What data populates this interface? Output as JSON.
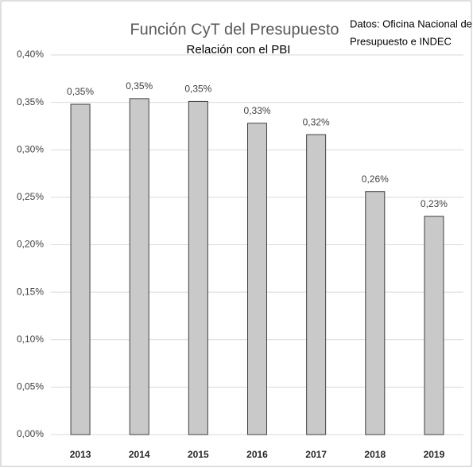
{
  "chart_data": {
    "type": "bar",
    "title": "Función CyT del Presupuesto",
    "subtitle": "Relación con el PBI",
    "annotation_lines": [
      "Datos: Oficina Nacional de",
      "Presupuesto e INDEC"
    ],
    "categories": [
      "2013",
      "2014",
      "2015",
      "2016",
      "2017",
      "2018",
      "2019"
    ],
    "values": [
      0.348,
      0.354,
      0.351,
      0.328,
      0.316,
      0.256,
      0.23
    ],
    "value_labels": [
      "0,35%",
      "0,35%",
      "0,35%",
      "0,33%",
      "0,32%",
      "0,26%",
      "0,23%"
    ],
    "color": "#c9c9c9",
    "ylim": [
      0,
      0.4
    ],
    "yticks": [
      {
        "value": 0,
        "label": "0,00%"
      },
      {
        "value": 0.05,
        "label": "0,05%"
      },
      {
        "value": 0.1,
        "label": "0,10%"
      },
      {
        "value": 0.15,
        "label": "0,15%"
      },
      {
        "value": 0.2,
        "label": "0,20%"
      },
      {
        "value": 0.25,
        "label": "0,25%"
      },
      {
        "value": 0.3,
        "label": "0,30%"
      },
      {
        "value": 0.35,
        "label": "0,35%"
      },
      {
        "value": 0.4,
        "label": "0,40%"
      }
    ],
    "grid": true
  }
}
